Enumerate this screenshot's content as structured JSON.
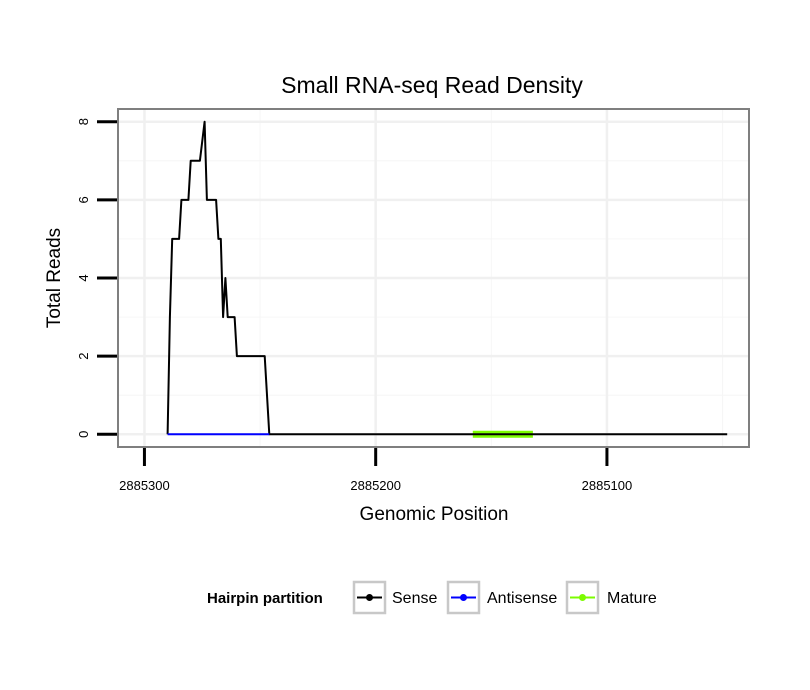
{
  "chart_data": {
    "type": "line",
    "title": "Small RNA-seq Read Density",
    "xlabel": "Genomic Position",
    "ylabel": "Total Reads",
    "x_reversed": true,
    "xlim": [
      2885311,
      2885039
    ],
    "ylim": [
      -0.3,
      8.3
    ],
    "x_ticks": [
      2885300,
      2885200,
      2885100
    ],
    "x_tick_labels": [
      "2885300",
      "2885200",
      "2885100"
    ],
    "y_ticks": [
      0,
      2,
      4,
      6,
      8
    ],
    "y_tick_labels": [
      "0",
      "2",
      "4",
      "6",
      "8"
    ],
    "grid": true,
    "legend": {
      "title": "Hairpin partition",
      "position": "bottom",
      "entries": [
        {
          "label": "Sense",
          "color": "#000000"
        },
        {
          "label": "Antisense",
          "color": "#0000ff"
        },
        {
          "label": "Mature",
          "color": "#7cfc00"
        }
      ]
    },
    "series": [
      {
        "name": "Sense",
        "color": "#000000",
        "x": [
          2885290,
          2885289,
          2885288,
          2885285,
          2885284,
          2885281,
          2885280,
          2885276,
          2885274,
          2885273,
          2885272,
          2885269,
          2885268,
          2885267,
          2885266,
          2885265,
          2885264,
          2885261,
          2885260,
          2885253,
          2885252,
          2885248,
          2885246,
          2885240,
          2885220,
          2885200,
          2885180,
          2885160,
          2885140,
          2885120,
          2885100,
          2885080,
          2885060,
          2885048
        ],
        "values": [
          0,
          3,
          5,
          5,
          6,
          6,
          7,
          7,
          8,
          6,
          6,
          6,
          5,
          5,
          3,
          4,
          3,
          3,
          2,
          2,
          2,
          2,
          0,
          0,
          0,
          0,
          0,
          0,
          0,
          0,
          0,
          0,
          0,
          0
        ]
      },
      {
        "name": "Antisense",
        "color": "#0000ff",
        "x": [
          2885290,
          2885246
        ],
        "values": [
          0,
          0
        ]
      },
      {
        "name": "Mature",
        "color": "#7cfc00",
        "x": [
          2885158,
          2885132
        ],
        "values": [
          0,
          0
        ]
      }
    ]
  }
}
